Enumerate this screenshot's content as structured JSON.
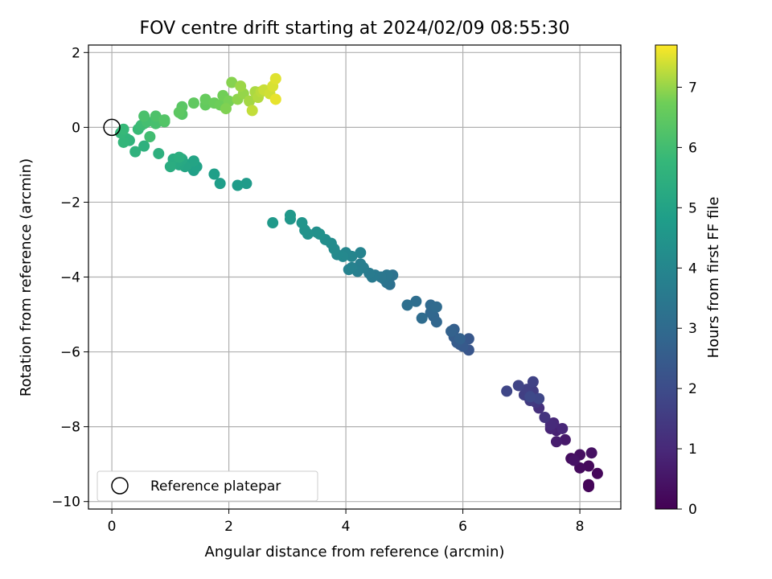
{
  "chart_data": {
    "type": "scatter",
    "title": "FOV centre drift starting at 2024/02/09 08:55:30",
    "xlabel": "Angular distance from reference (arcmin)",
    "ylabel": "Rotation from reference (arcmin)",
    "xlim": [
      -0.4,
      8.7
    ],
    "ylim": [
      -10.2,
      2.2
    ],
    "xticks": [
      0,
      2,
      4,
      6,
      8
    ],
    "yticks": [
      -10,
      -8,
      -6,
      -4,
      -2,
      0,
      2
    ],
    "grid": true,
    "legend": {
      "placement": "lower-left",
      "label": "Reference platepar"
    },
    "reference_point": {
      "x": 0,
      "y": 0
    },
    "colorbar": {
      "label": "Hours from first FF file",
      "range": [
        0,
        7.7
      ],
      "ticks": [
        0,
        1,
        2,
        3,
        4,
        5,
        6,
        7
      ],
      "colormap": "viridis"
    },
    "series": [
      {
        "points": [
          [
            8.15,
            -9.55,
            0.05
          ],
          [
            8.15,
            -9.6,
            0.1
          ],
          [
            8.3,
            -9.25,
            0.15
          ],
          [
            8.15,
            -9.05,
            0.2
          ],
          [
            8.0,
            -9.1,
            0.25
          ],
          [
            7.85,
            -8.85,
            0.3
          ],
          [
            8.0,
            -8.75,
            0.35
          ],
          [
            8.2,
            -8.7,
            0.4
          ],
          [
            7.9,
            -8.9,
            0.45
          ],
          [
            7.75,
            -8.35,
            0.6
          ],
          [
            7.6,
            -8.4,
            0.7
          ],
          [
            7.6,
            -8.1,
            0.8
          ],
          [
            7.5,
            -8.05,
            0.9
          ],
          [
            7.7,
            -8.05,
            0.95
          ],
          [
            7.55,
            -7.9,
            1.0
          ],
          [
            7.5,
            -7.95,
            1.05
          ],
          [
            7.3,
            -7.5,
            1.2
          ],
          [
            7.4,
            -7.75,
            1.3
          ],
          [
            7.25,
            -7.35,
            1.4
          ],
          [
            7.15,
            -7.3,
            1.5
          ],
          [
            7.2,
            -7.05,
            1.55
          ],
          [
            7.05,
            -7.15,
            1.6
          ],
          [
            7.1,
            -7.0,
            1.65
          ],
          [
            7.2,
            -6.8,
            1.7
          ],
          [
            6.95,
            -6.9,
            1.75
          ],
          [
            6.75,
            -7.05,
            1.8
          ],
          [
            7.3,
            -7.25,
            1.85
          ],
          [
            7.15,
            -7.2,
            1.9
          ],
          [
            6.1,
            -5.95,
            2.3
          ],
          [
            6.1,
            -5.65,
            2.35
          ],
          [
            5.95,
            -5.8,
            2.4
          ],
          [
            6.0,
            -5.85,
            2.45
          ],
          [
            5.9,
            -5.75,
            2.5
          ],
          [
            5.85,
            -5.6,
            2.55
          ],
          [
            5.85,
            -5.4,
            2.6
          ],
          [
            5.95,
            -5.65,
            2.65
          ],
          [
            5.8,
            -5.45,
            2.7
          ],
          [
            5.5,
            -5.05,
            2.8
          ],
          [
            5.55,
            -5.2,
            2.85
          ],
          [
            5.45,
            -4.95,
            2.9
          ],
          [
            5.45,
            -4.75,
            2.95
          ],
          [
            5.55,
            -4.8,
            3.0
          ],
          [
            5.3,
            -5.1,
            3.05
          ],
          [
            5.2,
            -4.65,
            3.1
          ],
          [
            5.05,
            -4.75,
            3.15
          ],
          [
            4.75,
            -4.2,
            3.2
          ],
          [
            4.8,
            -3.95,
            3.25
          ],
          [
            4.7,
            -4.15,
            3.3
          ],
          [
            4.65,
            -4.05,
            3.35
          ],
          [
            4.7,
            -3.95,
            3.4
          ],
          [
            4.6,
            -4.0,
            3.45
          ],
          [
            4.5,
            -3.95,
            3.5
          ],
          [
            4.45,
            -4.0,
            3.55
          ],
          [
            4.4,
            -3.9,
            3.6
          ],
          [
            4.3,
            -3.75,
            3.65
          ],
          [
            4.25,
            -3.65,
            3.7
          ],
          [
            4.2,
            -3.85,
            3.75
          ],
          [
            4.1,
            -3.75,
            3.8
          ],
          [
            4.05,
            -3.8,
            3.85
          ],
          [
            4.25,
            -3.35,
            3.9
          ],
          [
            4.1,
            -3.45,
            3.95
          ],
          [
            4.0,
            -3.35,
            4.0
          ],
          [
            3.95,
            -3.45,
            4.05
          ],
          [
            3.85,
            -3.4,
            4.1
          ],
          [
            3.8,
            -3.25,
            4.15
          ],
          [
            3.75,
            -3.1,
            4.2
          ],
          [
            3.65,
            -3.0,
            4.25
          ],
          [
            3.5,
            -2.8,
            4.3
          ],
          [
            3.55,
            -2.85,
            4.35
          ],
          [
            3.35,
            -2.85,
            4.4
          ],
          [
            3.3,
            -2.75,
            4.45
          ],
          [
            3.25,
            -2.55,
            4.5
          ],
          [
            3.05,
            -2.45,
            4.55
          ],
          [
            3.05,
            -2.35,
            4.6
          ],
          [
            2.75,
            -2.55,
            4.65
          ],
          [
            2.3,
            -1.5,
            4.7
          ],
          [
            2.15,
            -1.55,
            4.75
          ],
          [
            1.85,
            -1.5,
            4.8
          ],
          [
            1.75,
            -1.25,
            4.85
          ],
          [
            1.4,
            -1.15,
            4.9
          ],
          [
            1.45,
            -1.05,
            4.95
          ],
          [
            1.3,
            -1.0,
            5.0
          ],
          [
            1.4,
            -0.9,
            5.05
          ],
          [
            1.25,
            -1.05,
            5.1
          ],
          [
            1.15,
            -1.0,
            5.15
          ],
          [
            1.2,
            -0.85,
            5.2
          ],
          [
            1.1,
            -0.95,
            5.25
          ],
          [
            1.05,
            -0.85,
            5.3
          ],
          [
            1.0,
            -1.05,
            5.35
          ],
          [
            1.15,
            -0.8,
            5.4
          ],
          [
            0.8,
            -0.7,
            5.45
          ],
          [
            0.55,
            -0.5,
            5.5
          ],
          [
            0.4,
            -0.65,
            5.55
          ],
          [
            0.3,
            -0.35,
            5.6
          ],
          [
            0.25,
            -0.3,
            5.65
          ],
          [
            0.2,
            -0.4,
            5.7
          ],
          [
            0.15,
            -0.15,
            5.75
          ],
          [
            0.2,
            -0.05,
            5.8
          ],
          [
            0.45,
            -0.05,
            5.85
          ],
          [
            0.5,
            0.05,
            5.9
          ],
          [
            0.55,
            0.1,
            5.95
          ],
          [
            0.65,
            -0.25,
            6.0
          ],
          [
            0.6,
            0.15,
            6.05
          ],
          [
            0.75,
            0.1,
            6.1
          ],
          [
            0.55,
            0.3,
            6.15
          ],
          [
            0.75,
            0.3,
            6.2
          ],
          [
            0.9,
            0.15,
            6.25
          ],
          [
            0.9,
            0.2,
            6.3
          ],
          [
            1.2,
            0.35,
            6.35
          ],
          [
            1.2,
            0.55,
            6.4
          ],
          [
            1.15,
            0.4,
            6.45
          ],
          [
            1.4,
            0.65,
            6.5
          ],
          [
            1.6,
            0.6,
            6.55
          ],
          [
            1.6,
            0.75,
            6.6
          ],
          [
            1.75,
            0.65,
            6.65
          ],
          [
            1.85,
            0.6,
            6.7
          ],
          [
            1.9,
            0.85,
            6.75
          ],
          [
            2.0,
            0.7,
            6.8
          ],
          [
            1.95,
            0.5,
            6.85
          ],
          [
            2.05,
            1.2,
            6.9
          ],
          [
            2.15,
            0.75,
            6.95
          ],
          [
            2.25,
            0.9,
            7.0
          ],
          [
            2.2,
            1.1,
            7.05
          ],
          [
            2.35,
            0.7,
            7.1
          ],
          [
            2.45,
            0.95,
            7.15
          ],
          [
            2.5,
            0.8,
            7.2
          ],
          [
            2.55,
            0.95,
            7.25
          ],
          [
            2.4,
            0.45,
            7.3
          ],
          [
            2.6,
            1.0,
            7.35
          ],
          [
            2.7,
            0.9,
            7.4
          ],
          [
            2.75,
            1.1,
            7.45
          ],
          [
            2.8,
            1.3,
            7.5
          ],
          [
            2.8,
            0.75,
            7.55
          ]
        ]
      }
    ]
  },
  "tick_labels": {
    "x": [
      "0",
      "2",
      "4",
      "6",
      "8"
    ],
    "y": [
      "−10",
      "−8",
      "−6",
      "−4",
      "−2",
      "0",
      "2"
    ],
    "colorbar": [
      "0",
      "1",
      "2",
      "3",
      "4",
      "5",
      "6",
      "7"
    ]
  }
}
